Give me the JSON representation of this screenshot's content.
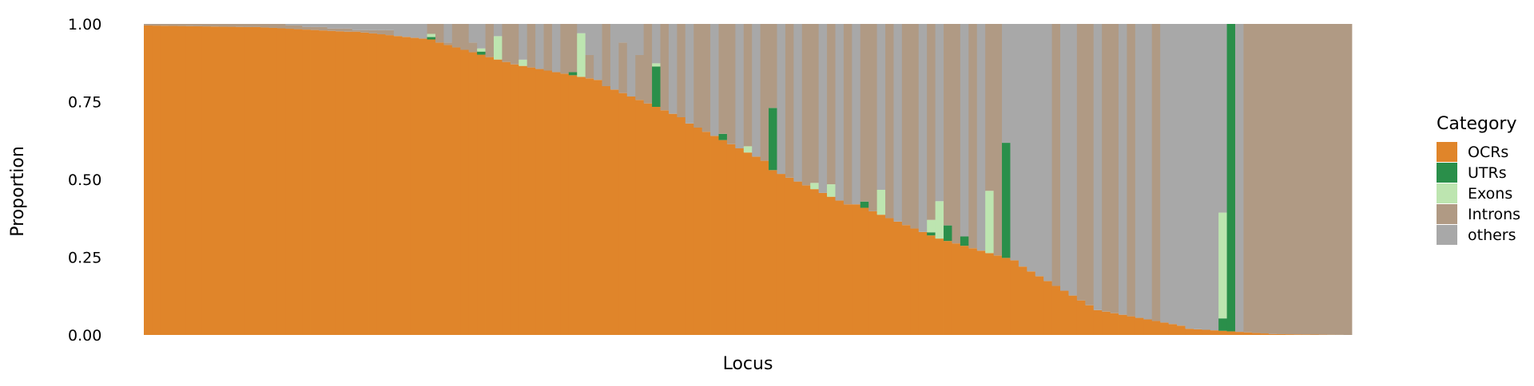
{
  "chart_data": {
    "type": "stacked_bar",
    "xlabel": "Locus",
    "ylabel": "Proportion",
    "ylim": [
      0,
      1
    ],
    "yticks": [
      "0.00",
      "0.25",
      "0.50",
      "0.75",
      "1.00"
    ],
    "ytick_values": [
      0,
      0.25,
      0.5,
      0.75,
      1.0
    ],
    "legend": {
      "title": "Category",
      "position": "right"
    },
    "series_order": [
      "OCRs",
      "UTRs",
      "Exons",
      "Introns",
      "others"
    ],
    "colors": {
      "OCRs": "#e0852a",
      "UTRs": "#2a8f4a",
      "Exons": "#bde5b0",
      "Introns": "#b09a84",
      "others": "#a8a8a8"
    },
    "n_loci": 145,
    "ocr_segments": [
      {
        "count": 13,
        "start": 0.995,
        "end": 0.99
      },
      {
        "count": 12,
        "start": 0.99,
        "end": 0.975
      },
      {
        "count": 10,
        "start": 0.975,
        "end": 0.95
      },
      {
        "count": 10,
        "start": 0.94,
        "end": 0.87
      },
      {
        "count": 10,
        "start": 0.865,
        "end": 0.82
      },
      {
        "count": 10,
        "start": 0.8,
        "end": 0.7
      },
      {
        "count": 10,
        "start": 0.68,
        "end": 0.56
      },
      {
        "count": 10,
        "start": 0.53,
        "end": 0.42
      },
      {
        "count": 10,
        "start": 0.42,
        "end": 0.32
      },
      {
        "count": 10,
        "start": 0.31,
        "end": 0.24
      },
      {
        "count": 10,
        "start": 0.22,
        "end": 0.08
      },
      {
        "count": 10,
        "start": 0.075,
        "end": 0.03
      },
      {
        "count": 10,
        "start": 0.02,
        "end": 0.005
      },
      {
        "count": 10,
        "start": 0.003,
        "end": 0.0
      }
    ],
    "extras": [
      {
        "index": 34,
        "UTRs": 0.008,
        "Exons": 0.01
      },
      {
        "index": 40,
        "UTRs": 0.01,
        "Exons": 0.01
      },
      {
        "index": 42,
        "Exons": 0.075
      },
      {
        "index": 45,
        "Exons": 0.02
      },
      {
        "index": 51,
        "UTRs": 0.01
      },
      {
        "index": 52,
        "Exons": 0.14
      },
      {
        "index": 61,
        "UTRs": 0.13,
        "Exons": 0.01
      },
      {
        "index": 69,
        "UTRs": 0.02
      },
      {
        "index": 72,
        "Exons": 0.02
      },
      {
        "index": 75,
        "UTRs": 0.2
      },
      {
        "index": 80,
        "Exons": 0.02
      },
      {
        "index": 82,
        "Exons": 0.04
      },
      {
        "index": 86,
        "UTRs": 0.02
      },
      {
        "index": 88,
        "Exons": 0.08
      },
      {
        "index": 94,
        "UTRs": 0.01,
        "Exons": 0.04
      },
      {
        "index": 95,
        "Exons": 0.12
      },
      {
        "index": 96,
        "UTRs": 0.05
      },
      {
        "index": 98,
        "UTRs": 0.03
      },
      {
        "index": 101,
        "Exons": 0.2
      },
      {
        "index": 103,
        "UTRs": 0.37
      },
      {
        "index": 129,
        "UTRs": 0.04,
        "Exons": 0.34
      },
      {
        "index": 130,
        "UTRs": 1.0
      }
    ],
    "others_fraction": [
      0.0,
      0.0,
      0.0,
      0.0,
      0.0,
      0.0,
      0.0,
      0.0,
      0.0,
      0.0,
      0.0,
      0.0,
      0.0,
      0.0,
      0.0,
      0.0,
      0.0,
      0.005,
      0.005,
      0.01,
      0.01,
      0.01,
      0.015,
      0.015,
      0.015,
      0.02,
      0.02,
      0.02,
      0.02,
      0.02,
      0.04,
      0.05,
      0.05,
      0.1,
      0.0,
      0.0,
      0.06,
      0.0,
      0.0,
      0.06,
      0.0,
      0.0,
      0.0,
      0.0,
      0.0,
      0.0,
      0.0,
      0.0,
      0.0,
      0.0,
      0.0,
      0.0,
      0.0,
      0.1,
      0.0,
      0.0,
      0.0,
      0.06,
      0.0,
      0.1,
      0.0,
      0.06,
      0.0,
      0.0,
      0.0,
      0.0,
      0.0,
      0.0,
      0.0,
      0.0,
      0.0,
      0.0,
      0.0,
      0.0,
      0.0,
      0.0,
      0.0,
      0.0,
      0.0,
      0.0,
      0.0,
      0.0,
      0.0,
      0.0,
      0.0,
      0.0,
      0.0,
      0.0,
      0.0,
      0.0,
      0.0,
      0.0,
      0.0,
      0.0,
      0.0,
      0.0,
      0.0,
      0.0,
      0.0,
      0.0,
      0.0,
      0.0,
      0.0,
      0.0,
      0.0,
      0.0,
      0.0,
      0.0,
      0.0,
      0.0,
      0.0,
      0.0,
      0.0,
      0.0,
      0.0,
      0.0,
      0.0,
      0.0,
      0.0,
      0.0,
      0.0,
      0.0,
      0.0,
      0.0,
      0.0,
      0.0,
      0.0,
      0.0,
      0.0,
      0.0,
      0.0,
      0.0,
      0.0,
      0.0,
      0.0,
      0.0,
      0.0,
      0.0,
      0.0,
      0.0,
      0.0,
      0.0,
      0.0,
      0.0,
      0.0
    ],
    "introns_vs_others_pattern": "I,I,I,I,I,I,I,I,I,I,I,I,I,I,I,I,I,I,I,I,I,I,I,I,I,I,I,I,I,I,I,I,I,I,I,I,I,I,I,I,O,I,O,I,I,O,I,O,I,O,I,I,O,I,O,I,O,I,O,I,I,O,I,O,I,O,I,I,O,I,I,O,I,O,I,I,O,I,O,I,I,O,I,O,I,O,I,I,O,I,O,I,I,O,I,O,I,I,O,I,O,I,I,O,O,O,O,O,O,I,O,O,I,I,O,I,I,O,I,O,O,I,O,O,O,O,O,O,O,O,O,O,I,I,I,I,I,I"
  }
}
